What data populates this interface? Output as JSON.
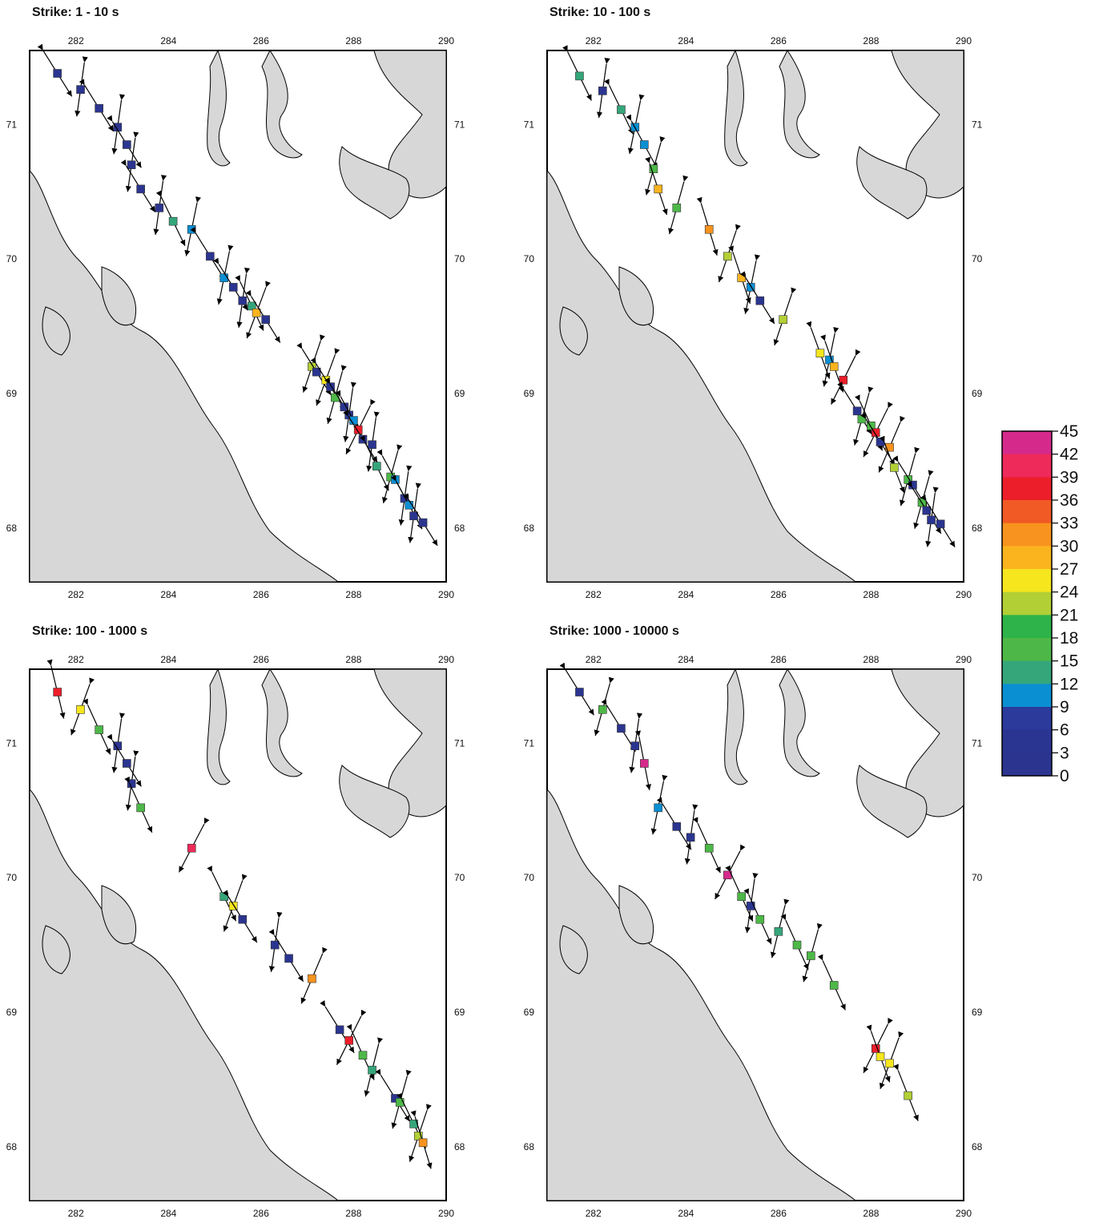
{
  "colors": {
    "land": "#d7d7d7",
    "water": "#ffffff",
    "coast": "#000000",
    "arrow": "#000000"
  },
  "colorbar": {
    "labels": [
      "45",
      "42",
      "39",
      "36",
      "33",
      "30",
      "27",
      "24",
      "21",
      "18",
      "15",
      "12",
      "9",
      "6",
      "3",
      "0"
    ],
    "colors": [
      "#d52a8c",
      "#ee2a5a",
      "#ec1e2a",
      "#f15a24",
      "#f7931e",
      "#fbb41e",
      "#f5e61e",
      "#b2cf35",
      "#2db34a",
      "#4db848",
      "#35a67a",
      "#0a8fd3",
      "#2b3a9b",
      "#2a3592",
      "#2b3590"
    ]
  },
  "panels": [
    {
      "title": "Strike: 1 - 10 s",
      "x_ticks": [
        "282",
        "284",
        "286",
        "288",
        "290"
      ],
      "y_ticks": [
        "71",
        "70",
        "69",
        "68"
      ],
      "sites": [
        {
          "lon": 281.6,
          "lat": 71.38,
          "strike": 3,
          "c": "#2b3590"
        },
        {
          "lon": 282.1,
          "lat": 71.26,
          "strike": 3,
          "c": "#2b3590"
        },
        {
          "lon": 282.5,
          "lat": 71.12,
          "strike": 3,
          "c": "#2b3590"
        },
        {
          "lon": 282.9,
          "lat": 70.98,
          "strike": 3,
          "c": "#2b3590"
        },
        {
          "lon": 283.1,
          "lat": 70.85,
          "strike": 3,
          "c": "#2b3590"
        },
        {
          "lon": 283.2,
          "lat": 70.7,
          "strike": 3,
          "c": "#2b3590"
        },
        {
          "lon": 283.4,
          "lat": 70.52,
          "strike": 3,
          "c": "#2b3590"
        },
        {
          "lon": 283.8,
          "lat": 70.38,
          "strike": 3,
          "c": "#2b3590"
        },
        {
          "lon": 284.1,
          "lat": 70.28,
          "strike": 15,
          "c": "#35a67a"
        },
        {
          "lon": 284.5,
          "lat": 70.22,
          "strike": 10,
          "c": "#0a8fd3"
        },
        {
          "lon": 284.9,
          "lat": 70.02,
          "strike": 3,
          "c": "#2b3590"
        },
        {
          "lon": 285.2,
          "lat": 69.86,
          "strike": 10,
          "c": "#0a8fd3"
        },
        {
          "lon": 285.4,
          "lat": 69.79,
          "strike": 3,
          "c": "#2b3590"
        },
        {
          "lon": 285.6,
          "lat": 69.69,
          "strike": 3,
          "c": "#2b3590"
        },
        {
          "lon": 285.8,
          "lat": 69.65,
          "strike": 16,
          "c": "#35a67a"
        },
        {
          "lon": 285.9,
          "lat": 69.6,
          "strike": 28,
          "c": "#fbb41e"
        },
        {
          "lon": 286.1,
          "lat": 69.55,
          "strike": 3,
          "c": "#2b3590"
        },
        {
          "lon": 287.1,
          "lat": 69.2,
          "strike": 24,
          "c": "#b2cf35"
        },
        {
          "lon": 287.2,
          "lat": 69.16,
          "strike": 3,
          "c": "#2b3590"
        },
        {
          "lon": 287.4,
          "lat": 69.1,
          "strike": 27,
          "c": "#f5e61e"
        },
        {
          "lon": 287.5,
          "lat": 69.05,
          "strike": 3,
          "c": "#2b3590"
        },
        {
          "lon": 287.6,
          "lat": 68.97,
          "strike": 18,
          "c": "#4db848"
        },
        {
          "lon": 287.8,
          "lat": 68.9,
          "strike": 3,
          "c": "#2b3590"
        },
        {
          "lon": 287.9,
          "lat": 68.84,
          "strike": 3,
          "c": "#2b3590"
        },
        {
          "lon": 288.0,
          "lat": 68.8,
          "strike": 10,
          "c": "#0a8fd3"
        },
        {
          "lon": 288.1,
          "lat": 68.73,
          "strike": 40,
          "c": "#ec1e2a"
        },
        {
          "lon": 288.2,
          "lat": 68.66,
          "strike": 3,
          "c": "#2b3590"
        },
        {
          "lon": 288.4,
          "lat": 68.62,
          "strike": 3,
          "c": "#2b3590"
        },
        {
          "lon": 288.5,
          "lat": 68.46,
          "strike": 15,
          "c": "#35a67a"
        },
        {
          "lon": 288.8,
          "lat": 68.38,
          "strike": 18,
          "c": "#4db848"
        },
        {
          "lon": 288.9,
          "lat": 68.36,
          "strike": 10,
          "c": "#0a8fd3"
        },
        {
          "lon": 289.1,
          "lat": 68.22,
          "strike": 3,
          "c": "#2b3590"
        },
        {
          "lon": 289.2,
          "lat": 68.17,
          "strike": 10,
          "c": "#0a8fd3"
        },
        {
          "lon": 289.3,
          "lat": 68.09,
          "strike": 3,
          "c": "#2b3590"
        },
        {
          "lon": 289.5,
          "lat": 68.04,
          "strike": 3,
          "c": "#2b3590"
        }
      ]
    },
    {
      "title": "Strike: 10 - 100 s",
      "x_ticks": [
        "282",
        "284",
        "286",
        "288",
        "290"
      ],
      "y_ticks": [
        "71",
        "70",
        "69",
        "68"
      ],
      "sites": [
        {
          "lon": 281.7,
          "lat": 71.36,
          "strike": 15,
          "c": "#35a67a"
        },
        {
          "lon": 282.2,
          "lat": 71.25,
          "strike": 3,
          "c": "#2b3590"
        },
        {
          "lon": 282.6,
          "lat": 71.11,
          "strike": 15,
          "c": "#35a67a"
        },
        {
          "lon": 282.9,
          "lat": 70.98,
          "strike": 10,
          "c": "#0a8fd3"
        },
        {
          "lon": 283.1,
          "lat": 70.85,
          "strike": 10,
          "c": "#0a8fd3"
        },
        {
          "lon": 283.3,
          "lat": 70.67,
          "strike": 18,
          "c": "#4db848"
        },
        {
          "lon": 283.4,
          "lat": 70.52,
          "strike": 30,
          "c": "#fbb41e"
        },
        {
          "lon": 283.8,
          "lat": 70.38,
          "strike": 18,
          "c": "#4db848"
        },
        {
          "lon": 284.5,
          "lat": 70.22,
          "strike": 33,
          "c": "#f7931e"
        },
        {
          "lon": 284.9,
          "lat": 70.02,
          "strike": 24,
          "c": "#b2cf35"
        },
        {
          "lon": 285.2,
          "lat": 69.86,
          "strike": 30,
          "c": "#fbb41e"
        },
        {
          "lon": 285.4,
          "lat": 69.79,
          "strike": 10,
          "c": "#0a8fd3"
        },
        {
          "lon": 285.6,
          "lat": 69.69,
          "strike": 3,
          "c": "#2b3590"
        },
        {
          "lon": 286.1,
          "lat": 69.55,
          "strike": 24,
          "c": "#b2cf35"
        },
        {
          "lon": 286.9,
          "lat": 69.3,
          "strike": 27,
          "c": "#f5e61e"
        },
        {
          "lon": 287.1,
          "lat": 69.25,
          "strike": 10,
          "c": "#0a8fd3"
        },
        {
          "lon": 287.2,
          "lat": 69.2,
          "strike": 28,
          "c": "#fbb41e"
        },
        {
          "lon": 287.4,
          "lat": 69.1,
          "strike": 40,
          "c": "#ec1e2a"
        },
        {
          "lon": 287.7,
          "lat": 68.87,
          "strike": 3,
          "c": "#2b3590"
        },
        {
          "lon": 287.8,
          "lat": 68.81,
          "strike": 18,
          "c": "#4db848"
        },
        {
          "lon": 288.0,
          "lat": 68.76,
          "strike": 18,
          "c": "#4db848"
        },
        {
          "lon": 288.1,
          "lat": 68.71,
          "strike": 40,
          "c": "#ec1e2a"
        },
        {
          "lon": 288.2,
          "lat": 68.64,
          "strike": 3,
          "c": "#2b3590"
        },
        {
          "lon": 288.4,
          "lat": 68.6,
          "strike": 33,
          "c": "#f7931e"
        },
        {
          "lon": 288.5,
          "lat": 68.45,
          "strike": 24,
          "c": "#b2cf35"
        },
        {
          "lon": 288.8,
          "lat": 68.36,
          "strike": 18,
          "c": "#4db848"
        },
        {
          "lon": 288.9,
          "lat": 68.32,
          "strike": 3,
          "c": "#2b3590"
        },
        {
          "lon": 289.1,
          "lat": 68.19,
          "strike": 18,
          "c": "#4db848"
        },
        {
          "lon": 289.2,
          "lat": 68.13,
          "strike": 3,
          "c": "#2b3590"
        },
        {
          "lon": 289.3,
          "lat": 68.06,
          "strike": 3,
          "c": "#2b3590"
        },
        {
          "lon": 289.5,
          "lat": 68.03,
          "strike": 3,
          "c": "#2b3590"
        }
      ]
    },
    {
      "title": "Strike: 100 - 1000 s",
      "x_ticks": [
        "282",
        "284",
        "286",
        "288",
        "290"
      ],
      "y_ticks": [
        "71",
        "70",
        "69",
        "68"
      ],
      "sites": [
        {
          "lon": 281.6,
          "lat": 71.38,
          "strike": 40,
          "c": "#ec1e2a"
        },
        {
          "lon": 282.1,
          "lat": 71.25,
          "strike": 27,
          "c": "#f5e61e"
        },
        {
          "lon": 282.5,
          "lat": 71.1,
          "strike": 18,
          "c": "#4db848"
        },
        {
          "lon": 282.9,
          "lat": 70.98,
          "strike": 3,
          "c": "#2b3590"
        },
        {
          "lon": 283.1,
          "lat": 70.85,
          "strike": 3,
          "c": "#2b3590"
        },
        {
          "lon": 283.2,
          "lat": 70.7,
          "strike": 3,
          "c": "#2b3590"
        },
        {
          "lon": 283.4,
          "lat": 70.52,
          "strike": 18,
          "c": "#4db848"
        },
        {
          "lon": 284.5,
          "lat": 70.22,
          "strike": 42,
          "c": "#ee2a5a"
        },
        {
          "lon": 285.2,
          "lat": 69.86,
          "strike": 15,
          "c": "#35a67a"
        },
        {
          "lon": 285.4,
          "lat": 69.79,
          "strike": 27,
          "c": "#f5e61e"
        },
        {
          "lon": 285.6,
          "lat": 69.69,
          "strike": 3,
          "c": "#2b3590"
        },
        {
          "lon": 286.3,
          "lat": 69.5,
          "strike": 3,
          "c": "#2b3590"
        },
        {
          "lon": 286.6,
          "lat": 69.4,
          "strike": 3,
          "c": "#2b3590"
        },
        {
          "lon": 287.1,
          "lat": 69.25,
          "strike": 33,
          "c": "#f7931e"
        },
        {
          "lon": 287.7,
          "lat": 68.87,
          "strike": 3,
          "c": "#2b3590"
        },
        {
          "lon": 287.9,
          "lat": 68.79,
          "strike": 40,
          "c": "#ec1e2a"
        },
        {
          "lon": 288.2,
          "lat": 68.68,
          "strike": 18,
          "c": "#4db848"
        },
        {
          "lon": 288.4,
          "lat": 68.57,
          "strike": 15,
          "c": "#35a67a"
        },
        {
          "lon": 288.9,
          "lat": 68.36,
          "strike": 3,
          "c": "#2b3590"
        },
        {
          "lon": 289.0,
          "lat": 68.33,
          "strike": 18,
          "c": "#4db848"
        },
        {
          "lon": 289.3,
          "lat": 68.17,
          "strike": 15,
          "c": "#35a67a"
        },
        {
          "lon": 289.4,
          "lat": 68.08,
          "strike": 24,
          "c": "#b2cf35"
        },
        {
          "lon": 289.5,
          "lat": 68.03,
          "strike": 33,
          "c": "#f7931e"
        }
      ]
    },
    {
      "title": "Strike: 1000 - 10000 s",
      "x_ticks": [
        "282",
        "284",
        "286",
        "288",
        "290"
      ],
      "y_ticks": [
        "71",
        "70",
        "69",
        "68"
      ],
      "sites": [
        {
          "lon": 281.7,
          "lat": 71.38,
          "strike": 3,
          "c": "#2b3590"
        },
        {
          "lon": 282.2,
          "lat": 71.25,
          "strike": 18,
          "c": "#4db848"
        },
        {
          "lon": 282.6,
          "lat": 71.11,
          "strike": 3,
          "c": "#2b3590"
        },
        {
          "lon": 282.9,
          "lat": 70.98,
          "strike": 3,
          "c": "#2b3590"
        },
        {
          "lon": 283.1,
          "lat": 70.85,
          "strike": 45,
          "c": "#d52a8c"
        },
        {
          "lon": 283.4,
          "lat": 70.52,
          "strike": 10,
          "c": "#0a8fd3"
        },
        {
          "lon": 283.8,
          "lat": 70.38,
          "strike": 3,
          "c": "#2b3590"
        },
        {
          "lon": 284.1,
          "lat": 70.3,
          "strike": 3,
          "c": "#2b3590"
        },
        {
          "lon": 284.5,
          "lat": 70.22,
          "strike": 18,
          "c": "#4db848"
        },
        {
          "lon": 284.9,
          "lat": 70.02,
          "strike": 42,
          "c": "#d52a8c"
        },
        {
          "lon": 285.2,
          "lat": 69.86,
          "strike": 18,
          "c": "#4db848"
        },
        {
          "lon": 285.4,
          "lat": 69.79,
          "strike": 3,
          "c": "#2b3590"
        },
        {
          "lon": 285.6,
          "lat": 69.69,
          "strike": 18,
          "c": "#4db848"
        },
        {
          "lon": 286.0,
          "lat": 69.6,
          "strike": 15,
          "c": "#35a67a"
        },
        {
          "lon": 286.4,
          "lat": 69.5,
          "strike": 18,
          "c": "#4db848"
        },
        {
          "lon": 286.7,
          "lat": 69.42,
          "strike": 18,
          "c": "#4db848"
        },
        {
          "lon": 287.2,
          "lat": 69.2,
          "strike": 18,
          "c": "#4db848"
        },
        {
          "lon": 288.1,
          "lat": 68.73,
          "strike": 40,
          "c": "#ec1e2a"
        },
        {
          "lon": 288.2,
          "lat": 68.67,
          "strike": 27,
          "c": "#f5e61e"
        },
        {
          "lon": 288.4,
          "lat": 68.62,
          "strike": 27,
          "c": "#f5e61e"
        },
        {
          "lon": 288.8,
          "lat": 68.38,
          "strike": 24,
          "c": "#b2cf35"
        }
      ]
    }
  ]
}
